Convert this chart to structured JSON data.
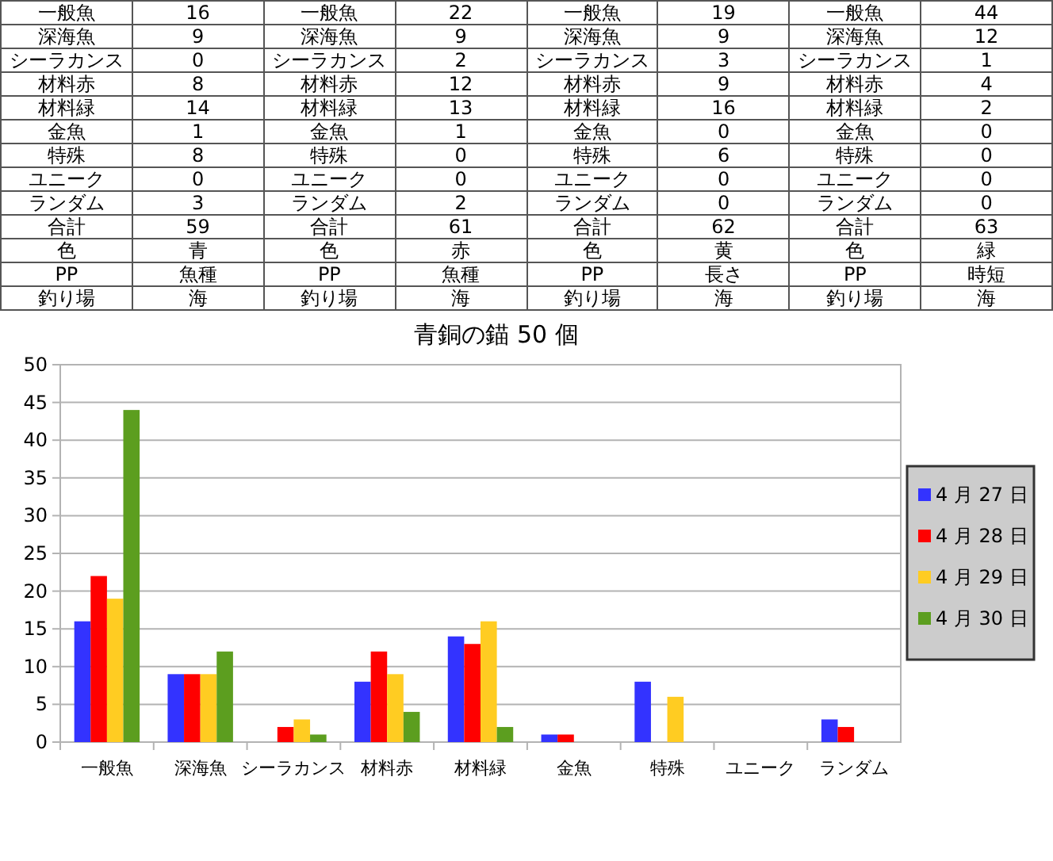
{
  "chart_data": [
    {
      "type": "other",
      "annotations": [
        "一般魚",
        "16",
        "一般魚",
        "22",
        "一般魚",
        "19",
        "一般魚",
        "44",
        "深海魚",
        "9",
        "深海魚",
        "9",
        "深海魚",
        "9",
        "深海魚",
        "12",
        "シーラカンス",
        "0",
        "シーラカンス",
        "2",
        "シーラカンス",
        "3",
        "シーラカンス",
        "1",
        "材料赤",
        "8",
        "材料赤",
        "12",
        "材料赤",
        "9",
        "材料赤",
        "4",
        "材料緑",
        "14",
        "材料緑",
        "13",
        "材料緑",
        "16",
        "材料緑",
        "2",
        "金魚",
        "1",
        "金魚",
        "1",
        "金魚",
        "0",
        "金魚",
        "0",
        "特殊",
        "8",
        "特殊",
        "0",
        "特殊",
        "6",
        "特殊",
        "0",
        "ユニーク",
        "0",
        "ユニーク",
        "0",
        "ユニーク",
        "0",
        "ユニーク",
        "0",
        "ランダム",
        "3",
        "ランダム",
        "2",
        "ランダム",
        "0",
        "ランダム",
        "0",
        "合計",
        "59",
        "合計",
        "61",
        "合計",
        "62",
        "合計",
        "63",
        "色",
        "青",
        "色",
        "赤",
        "色",
        "黄",
        "色",
        "緑",
        "PP",
        "魚種",
        "PP",
        "魚種",
        "PP",
        "長さ",
        "PP",
        "時短",
        "釣り場",
        "海",
        "釣り場",
        "海",
        "釣り場",
        "海",
        "釣り場",
        "海"
      ]
    },
    {
      "type": "bar",
      "title": "青銅の錨 50 個",
      "categories": [
        "一般魚",
        "深海魚",
        "シーラカンス",
        "材料赤",
        "材料緑",
        "金魚",
        "特殊",
        "ユニーク",
        "ランダム"
      ],
      "series": [
        {
          "name": "4 月 27 日",
          "color": "#3333ff",
          "values": [
            16,
            9,
            0,
            8,
            14,
            1,
            8,
            0,
            3
          ]
        },
        {
          "name": "4 月 28 日",
          "color": "#ff0000",
          "values": [
            22,
            9,
            2,
            12,
            13,
            1,
            0,
            0,
            2
          ]
        },
        {
          "name": "4 月 29 日",
          "color": "#ffcc22",
          "values": [
            19,
            9,
            3,
            9,
            16,
            0,
            6,
            0,
            0
          ]
        },
        {
          "name": "4 月 30 日",
          "color": "#5c9e1f",
          "values": [
            44,
            12,
            1,
            4,
            2,
            0,
            0,
            0,
            0
          ]
        }
      ],
      "ylim": [
        0,
        50
      ],
      "yticks": [
        0,
        5,
        10,
        15,
        20,
        25,
        30,
        35,
        40,
        45,
        50
      ],
      "grid": "y",
      "legend": "right"
    }
  ]
}
